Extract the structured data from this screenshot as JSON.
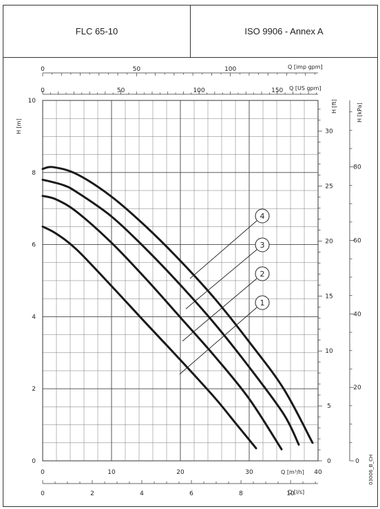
{
  "header": {
    "model": "FLC 65-10",
    "standard": "ISO 9906 - Annex A"
  },
  "chart_data": {
    "type": "line",
    "x_primary": {
      "label": "Q [m³/h]",
      "range": [
        0,
        40
      ],
      "ticks": [
        0,
        10,
        20,
        30,
        40
      ]
    },
    "x_ls": {
      "label": "Q [l/s]",
      "range": [
        0,
        11.11
      ],
      "ticks": [
        0,
        2,
        4,
        6,
        8,
        10
      ]
    },
    "x_imp": {
      "label": "Q [imp gpm]",
      "range": [
        0,
        146.7
      ],
      "ticks": [
        0,
        50,
        100
      ]
    },
    "x_us": {
      "label": "Q [US gpm]",
      "range": [
        0,
        176.1
      ],
      "ticks": [
        0,
        50,
        100,
        150
      ]
    },
    "y_primary": {
      "label": "H [m]",
      "range": [
        0,
        10
      ],
      "ticks": [
        0,
        2,
        4,
        6,
        8,
        10
      ]
    },
    "y_ft": {
      "label": "H [ft]",
      "range": [
        0,
        32.8
      ],
      "ticks": [
        0,
        5,
        10,
        15,
        20,
        25,
        30
      ]
    },
    "y_kpa": {
      "label": "H [kPa]",
      "range": [
        0,
        98.1
      ],
      "ticks": [
        0,
        20,
        40,
        60,
        80
      ]
    },
    "grid": true,
    "series": [
      {
        "name": "1",
        "x": [
          0,
          2,
          5,
          10,
          15,
          20,
          25,
          28,
          31
        ],
        "y": [
          6.5,
          6.3,
          5.85,
          4.85,
          3.82,
          2.8,
          1.75,
          1.05,
          0.35
        ]
      },
      {
        "name": "2",
        "x": [
          0,
          2,
          5,
          10,
          15,
          20,
          25,
          30,
          34.7
        ],
        "y": [
          7.35,
          7.25,
          6.9,
          6.05,
          5.05,
          3.98,
          2.9,
          1.72,
          0.32
        ]
      },
      {
        "name": "3",
        "x": [
          0,
          3,
          5,
          10,
          15,
          20,
          25,
          30,
          35,
          37.2
        ],
        "y": [
          7.8,
          7.65,
          7.45,
          6.78,
          5.88,
          4.88,
          3.8,
          2.6,
          1.3,
          0.45
        ]
      },
      {
        "name": "4",
        "x": [
          0,
          1.5,
          5,
          10,
          15,
          20,
          25,
          30,
          35,
          39.2
        ],
        "y": [
          8.1,
          8.15,
          7.95,
          7.33,
          6.5,
          5.55,
          4.5,
          3.3,
          2.0,
          0.5
        ]
      }
    ],
    "annotation": "03006_B_CH"
  }
}
